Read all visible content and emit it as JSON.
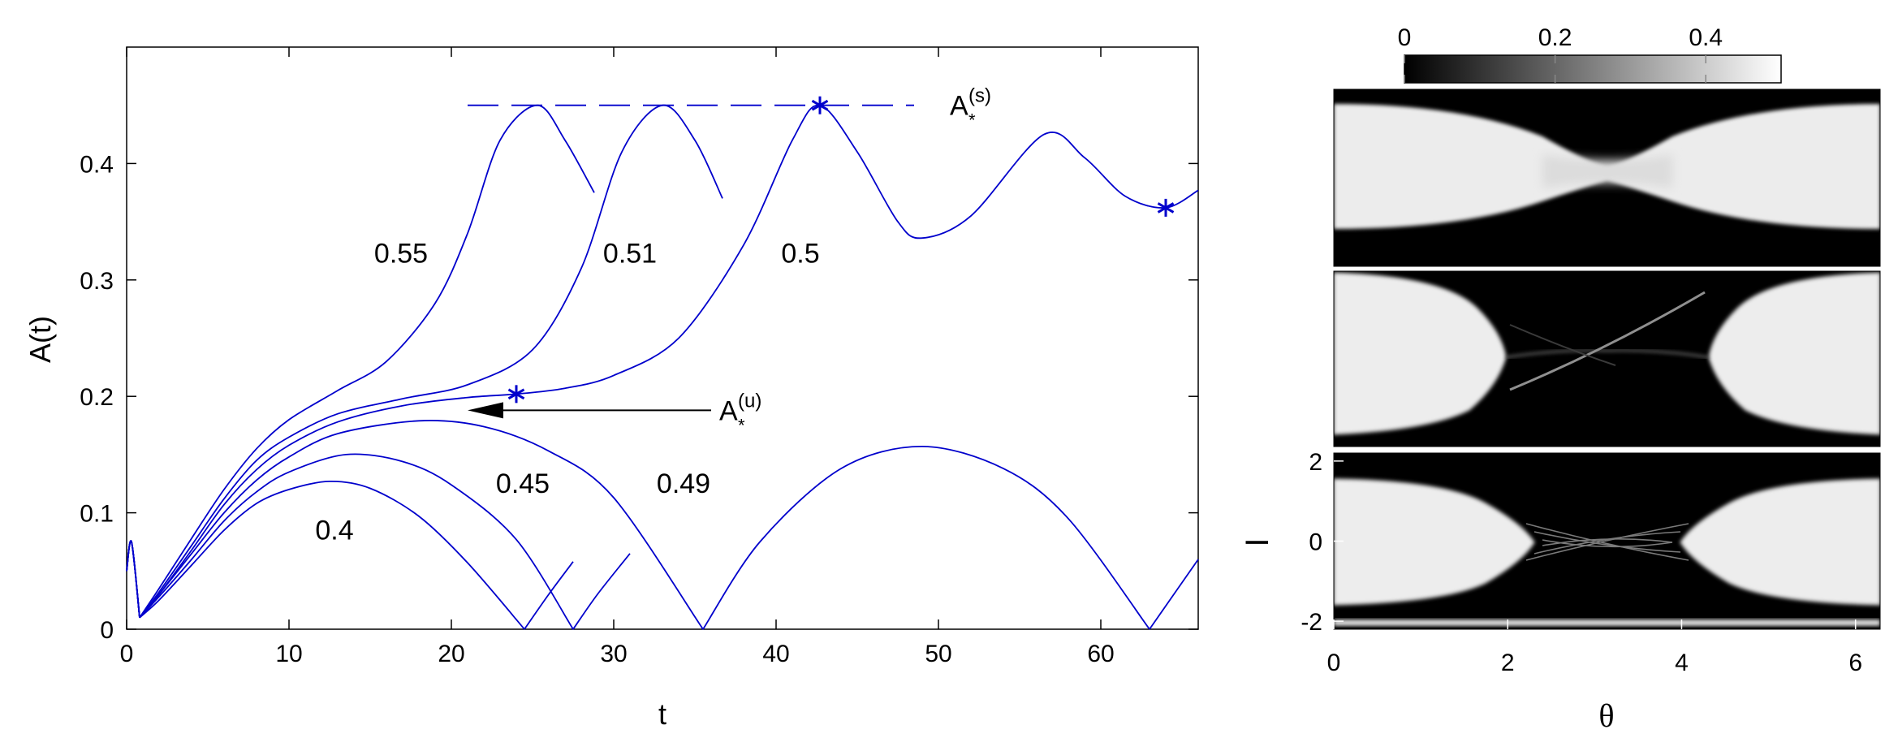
{
  "chart_data": [
    {
      "type": "line",
      "title": "",
      "xlabel": "t",
      "ylabel": "A(t)",
      "xlim": [
        0,
        66
      ],
      "ylim": [
        0,
        0.5
      ],
      "xticks": [
        "0",
        "10",
        "20",
        "30",
        "40",
        "50",
        "60"
      ],
      "yticks": [
        "0",
        "0.1",
        "0.2",
        "0.3",
        "0.4"
      ],
      "grid": false,
      "color": "#0000cc",
      "series": [
        {
          "name": "0.4",
          "x": [
            0,
            0.3,
            0.8,
            2,
            4,
            6,
            8,
            10,
            12.5,
            15,
            18,
            21,
            24.5,
            26,
            27.5
          ],
          "y": [
            0.05,
            0.075,
            0.01,
            0.025,
            0.055,
            0.085,
            0.108,
            0.12,
            0.127,
            0.121,
            0.097,
            0.057,
            0.0,
            0.03,
            0.058
          ]
        },
        {
          "name": "0.45",
          "x": [
            0,
            0.3,
            0.8,
            2,
            4,
            6,
            8,
            10,
            13.5,
            17,
            20,
            24,
            27.5,
            29,
            31
          ],
          "y": [
            0.05,
            0.075,
            0.01,
            0.028,
            0.06,
            0.093,
            0.118,
            0.135,
            0.15,
            0.144,
            0.124,
            0.077,
            0.0,
            0.03,
            0.065
          ]
        },
        {
          "name": "0.49",
          "x": [
            0,
            0.3,
            0.8,
            2,
            4,
            6,
            8,
            10,
            13,
            18,
            22,
            26,
            30,
            35.5,
            39,
            44,
            49,
            54,
            58,
            63,
            66
          ],
          "y": [
            0.05,
            0.075,
            0.01,
            0.03,
            0.065,
            0.1,
            0.128,
            0.148,
            0.168,
            0.179,
            0.174,
            0.153,
            0.113,
            0.0,
            0.075,
            0.138,
            0.157,
            0.138,
            0.095,
            0.0,
            0.06
          ]
        },
        {
          "name": "0.5",
          "x": [
            0,
            0.3,
            0.8,
            2,
            4,
            6,
            8,
            10,
            13,
            17,
            21,
            24,
            27,
            30,
            34,
            38,
            41,
            42.7,
            45,
            47.5,
            49,
            52,
            56.5,
            59,
            61.5,
            64,
            66
          ],
          "y": [
            0.05,
            0.075,
            0.01,
            0.03,
            0.068,
            0.107,
            0.137,
            0.158,
            0.178,
            0.192,
            0.199,
            0.202,
            0.207,
            0.218,
            0.25,
            0.33,
            0.42,
            0.45,
            0.41,
            0.35,
            0.336,
            0.355,
            0.425,
            0.405,
            0.372,
            0.362,
            0.377
          ]
        },
        {
          "name": "0.51",
          "x": [
            0,
            0.3,
            0.8,
            2,
            4,
            6,
            8,
            10,
            13,
            17,
            21,
            25,
            28,
            30.5,
            33,
            35,
            36.7
          ],
          "y": [
            0.05,
            0.075,
            0.01,
            0.032,
            0.072,
            0.112,
            0.145,
            0.165,
            0.185,
            0.198,
            0.21,
            0.24,
            0.31,
            0.41,
            0.45,
            0.42,
            0.37
          ]
        },
        {
          "name": "0.55",
          "x": [
            0,
            0.3,
            0.8,
            2,
            4,
            6,
            8,
            10,
            13,
            16,
            19,
            21,
            23,
            25.3,
            27,
            28.8
          ],
          "y": [
            0.05,
            0.075,
            0.01,
            0.035,
            0.078,
            0.12,
            0.155,
            0.18,
            0.205,
            0.23,
            0.28,
            0.34,
            0.42,
            0.45,
            0.42,
            0.375
          ]
        }
      ],
      "curve_labels": [
        {
          "text": "0.55",
          "x": 16.9,
          "y": 0.315
        },
        {
          "text": "0.51",
          "x": 31.0,
          "y": 0.315
        },
        {
          "text": "0.5",
          "x": 41.5,
          "y": 0.315
        },
        {
          "text": "0.45",
          "x": 24.4,
          "y": 0.117
        },
        {
          "text": "0.49",
          "x": 34.3,
          "y": 0.117
        },
        {
          "text": "0.4",
          "x": 12.8,
          "y": 0.077
        }
      ],
      "reference_line": {
        "y": 0.45,
        "x_start": 21,
        "x_end": 48.5,
        "label_base": "A",
        "label_sub": "*",
        "label_sup": "(s)"
      },
      "star_markers": [
        {
          "x": 24,
          "y": 0.202
        },
        {
          "x": 42.7,
          "y": 0.45
        },
        {
          "x": 64,
          "y": 0.362
        }
      ],
      "arrow": {
        "from_x": 35,
        "from_y": 0.188,
        "to_x": 21,
        "to_y": 0.188,
        "label_base": "A",
        "label_sub": "*",
        "label_sup": "(u)"
      }
    },
    {
      "type": "heatmap",
      "title": "",
      "xlabel": "θ",
      "ylabel": "I",
      "xlim": [
        0,
        6.283
      ],
      "ylim": [
        -2.2,
        2.2
      ],
      "xticks": [
        "0",
        "2",
        "4",
        "6"
      ],
      "yticks": [
        "2",
        "0",
        "-2"
      ],
      "colorbar": {
        "colormap": "gray",
        "range": [
          0,
          0.5
        ],
        "ticks": [
          "0",
          "0.2",
          "0.4"
        ],
        "placement": "top"
      },
      "panels": 3
    }
  ]
}
